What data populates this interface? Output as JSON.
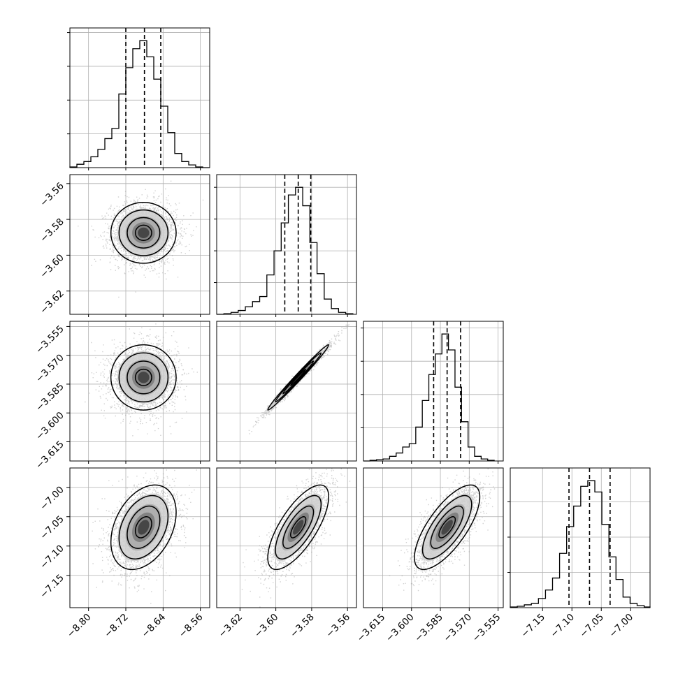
{
  "chart_data": {
    "type": "corner",
    "title": "",
    "n_params": 4,
    "grid": true,
    "colors": {
      "line": "#000000",
      "grid": "#b0b0b0",
      "scatter": "#9a9a9a"
    },
    "params": [
      {
        "index": 0,
        "range": [
          -8.84,
          -8.54
        ],
        "ticks": [
          -8.8,
          -8.72,
          -8.64,
          -8.56
        ],
        "tick_labels": [
          "−8.80",
          "−8.72",
          "−8.64",
          "−8.56"
        ],
        "quantiles": [
          -8.72,
          -8.68,
          -8.645
        ],
        "hist_bin_edges": [
          -8.84,
          -8.825,
          -8.81,
          -8.795,
          -8.78,
          -8.765,
          -8.75,
          -8.735,
          -8.72,
          -8.705,
          -8.69,
          -8.675,
          -8.66,
          -8.645,
          -8.63,
          -8.615,
          -8.6,
          -8.585,
          -8.57,
          -8.555,
          -8.54
        ],
        "hist_counts": [
          1,
          5,
          9,
          16,
          27,
          43,
          58,
          109,
          148,
          176,
          188,
          164,
          131,
          91,
          52,
          21,
          9,
          4,
          1,
          0
        ]
      },
      {
        "index": 1,
        "range": [
          -3.633,
          -3.555
        ],
        "ticks": [
          -3.62,
          -3.6,
          -3.58,
          -3.56
        ],
        "tick_labels": [
          "−3.62",
          "−3.60",
          "−3.58",
          "−3.56"
        ],
        "quantiles": [
          -3.595,
          -3.5875,
          -3.5805
        ],
        "hist_bin_edges": [
          -3.633,
          -3.629,
          -3.625,
          -3.621,
          -3.617,
          -3.613,
          -3.609,
          -3.605,
          -3.601,
          -3.597,
          -3.593,
          -3.589,
          -3.585,
          -3.581,
          -3.577,
          -3.573,
          -3.569,
          -3.565,
          -3.561,
          -3.557
        ],
        "hist_counts": [
          0,
          1,
          3,
          6,
          12,
          20,
          28,
          62,
          100,
          144,
          188,
          200,
          171,
          113,
          64,
          24,
          9,
          3,
          1
        ]
      },
      {
        "index": 2,
        "range": [
          -3.625,
          -3.5523
        ],
        "ticks": [
          -3.615,
          -3.6,
          -3.585,
          -3.57,
          -3.555
        ],
        "tick_labels": [
          "−3.615",
          "−3.600",
          "−3.585",
          "−3.570",
          "−3.555"
        ],
        "quantiles": [
          -3.5885,
          -3.5815,
          -3.5745
        ],
        "hist_bin_edges": [
          -3.625,
          -3.6216,
          -3.6182,
          -3.6148,
          -3.6114,
          -3.608,
          -3.6046,
          -3.6012,
          -3.5978,
          -3.5944,
          -3.591,
          -3.5876,
          -3.5842,
          -3.5808,
          -3.5774,
          -3.574,
          -3.5706,
          -3.5672,
          -3.5638,
          -3.5604,
          -3.557
        ],
        "hist_counts": [
          0,
          1,
          2,
          3,
          7,
          12,
          21,
          26,
          51,
          91,
          130,
          161,
          191,
          167,
          111,
          59,
          21,
          7,
          3,
          1
        ]
      },
      {
        "index": 3,
        "range": [
          -7.205,
          -6.967
        ],
        "ticks": [
          -7.15,
          -7.1,
          -7.05,
          -7.0
        ],
        "tick_labels": [
          "−7.15",
          "−7.10",
          "−7.05",
          "−7.00"
        ],
        "quantiles": [
          -7.105,
          -7.07,
          -7.035
        ],
        "hist_bin_edges": [
          -7.205,
          -7.193,
          -7.181,
          -7.169,
          -7.157,
          -7.145,
          -7.133,
          -7.121,
          -7.109,
          -7.097,
          -7.085,
          -7.073,
          -7.061,
          -7.049,
          -7.037,
          -7.025,
          -7.013,
          -7.001,
          -6.989,
          -6.977,
          -6.967
        ],
        "hist_counts": [
          1,
          2,
          4,
          6,
          13,
          25,
          42,
          77,
          115,
          144,
          172,
          180,
          164,
          118,
          72,
          40,
          15,
          6,
          3,
          1
        ]
      }
    ],
    "pairs": [
      {
        "x": 0,
        "y": 1,
        "mean": [
          -8.682,
          -3.5875
        ],
        "sd": [
          0.035,
          0.0085
        ],
        "rho": 0.0
      },
      {
        "x": 0,
        "y": 2,
        "mean": [
          -8.682,
          -3.5815
        ],
        "sd": [
          0.035,
          0.0085
        ],
        "rho": 0.0
      },
      {
        "x": 1,
        "y": 2,
        "mean": [
          -3.5875,
          -3.5815
        ],
        "sd": [
          0.0085,
          0.0085
        ],
        "rho": 0.99
      },
      {
        "x": 0,
        "y": 3,
        "mean": [
          -8.682,
          -7.068
        ],
        "sd": [
          0.035,
          0.036
        ],
        "rho": 0.35
      },
      {
        "x": 1,
        "y": 3,
        "mean": [
          -3.5875,
          -7.068
        ],
        "sd": [
          0.0085,
          0.036
        ],
        "rho": 0.72
      },
      {
        "x": 2,
        "y": 3,
        "mean": [
          -3.5815,
          -7.068
        ],
        "sd": [
          0.0085,
          0.036
        ],
        "rho": 0.72
      }
    ],
    "contour_levels_sigma": [
      0.5,
      1.0,
      1.5,
      2.0
    ]
  }
}
